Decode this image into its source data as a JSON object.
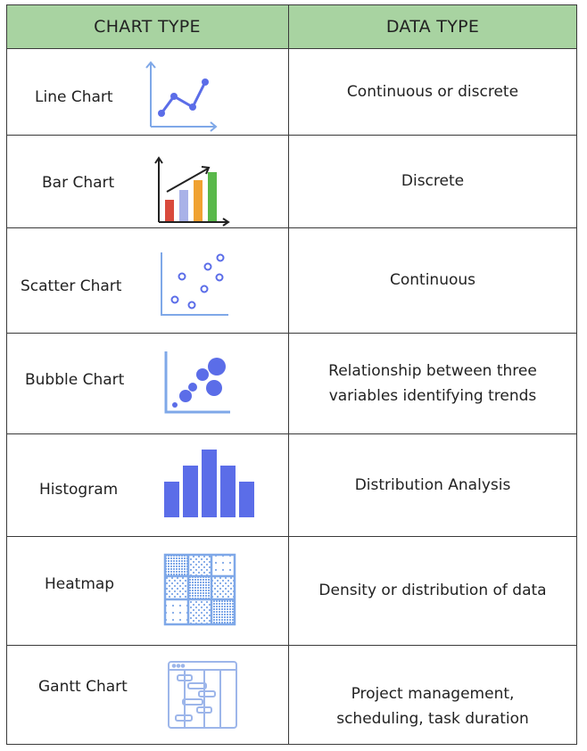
{
  "headers": {
    "chart_type": "CHART TYPE",
    "data_type": "DATA TYPE"
  },
  "rows": [
    {
      "name": "Line Chart",
      "icon": "line-chart-icon",
      "data": [
        "Continuous or discrete"
      ]
    },
    {
      "name": "Bar Chart",
      "icon": "bar-chart-icon",
      "data": [
        "Discrete"
      ]
    },
    {
      "name": "Scatter Chart",
      "icon": "scatter-chart-icon",
      "data": [
        "Continuous"
      ]
    },
    {
      "name": "Bubble Chart",
      "icon": "bubble-chart-icon",
      "data": [
        "Relationship between three",
        "variables identifying trends"
      ]
    },
    {
      "name": "Histogram",
      "icon": "histogram-icon",
      "data": [
        "Distribution Analysis"
      ]
    },
    {
      "name": "Heatmap",
      "icon": "heatmap-icon",
      "data": [
        "Density or distribution of data"
      ]
    },
    {
      "name": "Gantt Chart",
      "icon": "gantt-chart-icon",
      "data": [
        "Project management,",
        "scheduling, task duration"
      ]
    }
  ],
  "colors": {
    "header_background": "#a8d3a1",
    "border": "#3a3a3a",
    "icon_blue": "#5b6de8",
    "icon_light_blue": "#7fa8e8",
    "bar_red": "#d94a3c",
    "bar_lilac": "#a9b2e8",
    "bar_orange": "#f0a232",
    "bar_green": "#59b84a"
  }
}
